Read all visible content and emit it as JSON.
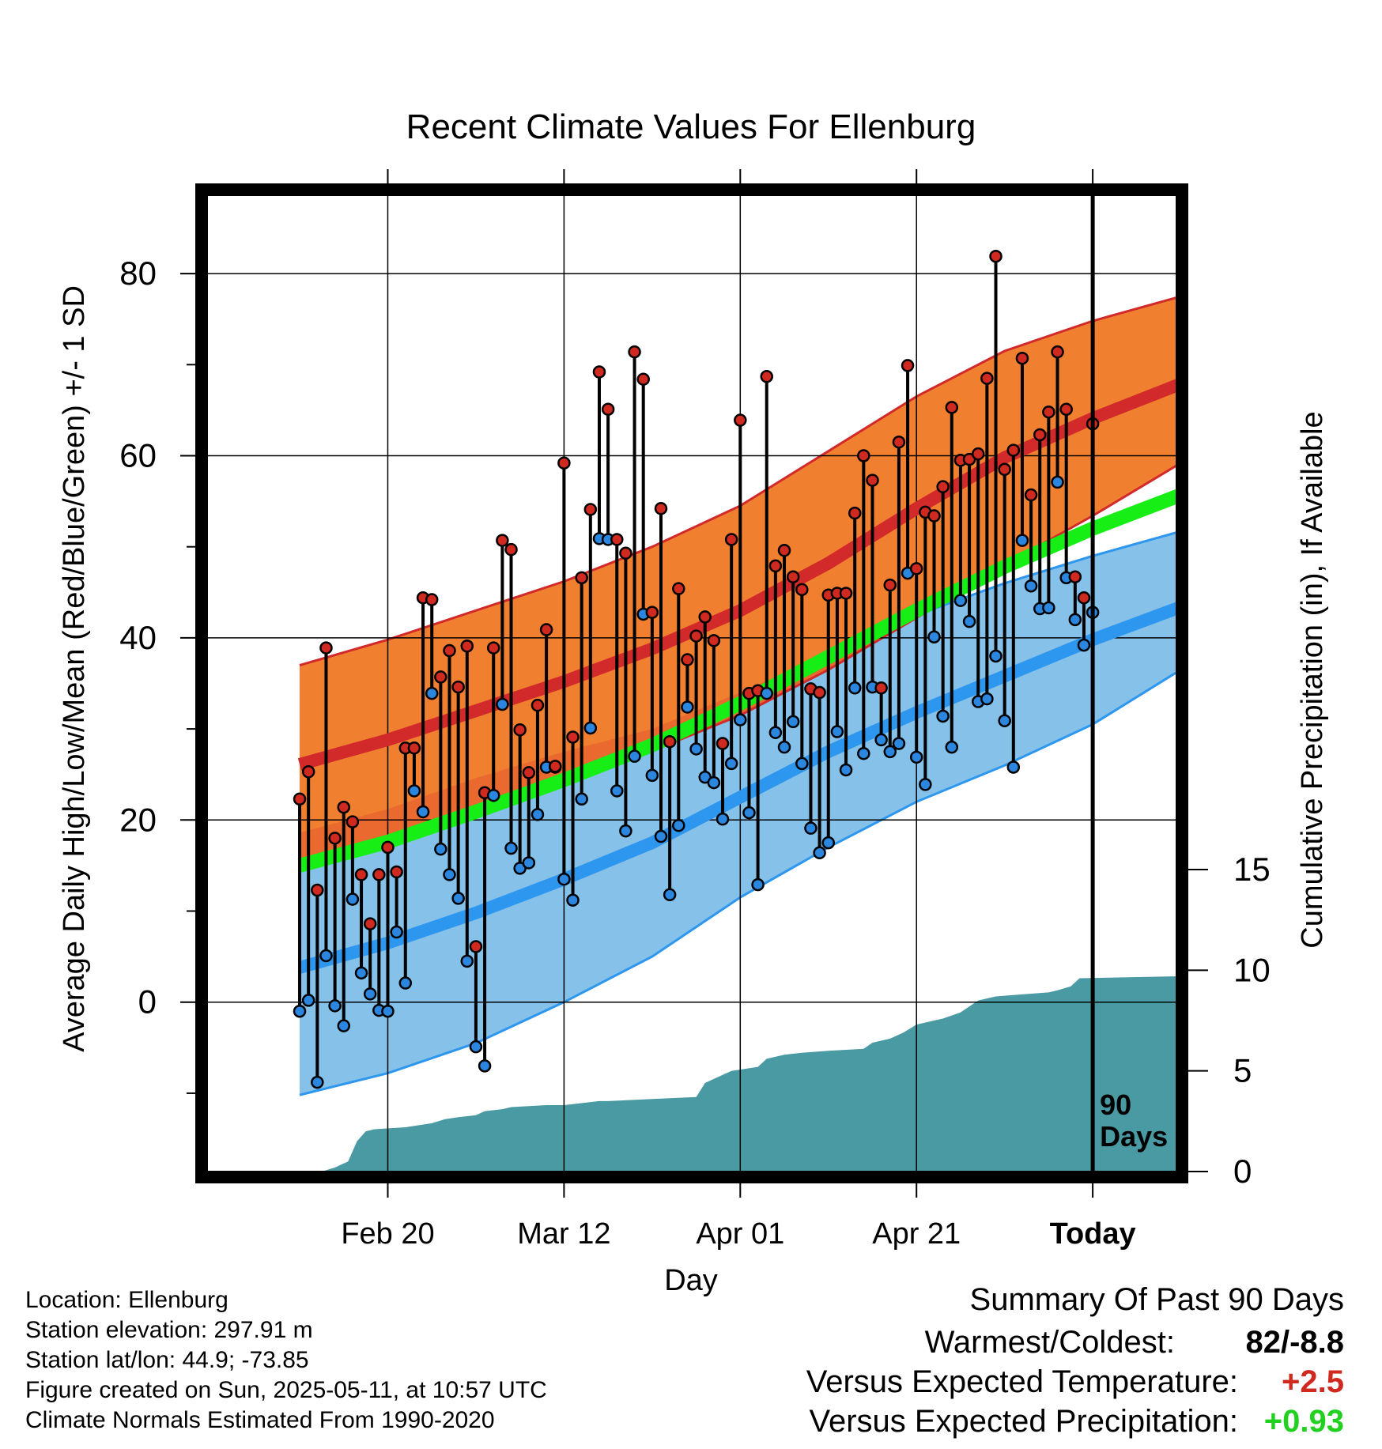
{
  "chart_data": {
    "type": "line",
    "title": "Recent Climate Values For Ellenburg",
    "xlabel": "Day",
    "ylabel": "Average Daily High/Low/Mean (Red/Blue/Green) +/- 1 SD",
    "y2label": "Cumulative Precipitation (in), If Available",
    "x_tick_labels": [
      "Feb 20",
      "Mar 12",
      "Apr 01",
      "Apr 21",
      "Today"
    ],
    "x_tick_days": [
      10,
      30,
      50,
      70,
      90
    ],
    "xlim": [
      -10.5,
      99.5
    ],
    "y_ticks": [
      0,
      20,
      40,
      60,
      80
    ],
    "ylim": [
      -18.6,
      88.6
    ],
    "y2_ticks": [
      0,
      5,
      10,
      15
    ],
    "y2lim": [
      0,
      48.5
    ],
    "grid": true,
    "marker_label": "90 Days",
    "normals": {
      "days": [
        0,
        10,
        20,
        30,
        40,
        50,
        60,
        70,
        80,
        90,
        100
      ],
      "high_mean": [
        26.1,
        28.8,
        32.0,
        35.2,
        38.8,
        43.0,
        48.2,
        54.2,
        59.8,
        64.1,
        67.9
      ],
      "high_upper": [
        37.0,
        39.8,
        43.0,
        46.2,
        50.0,
        54.5,
        60.5,
        66.5,
        71.5,
        74.8,
        77.5
      ],
      "high_lower": [
        15.2,
        17.8,
        21.0,
        24.2,
        27.6,
        31.5,
        36.5,
        42.2,
        48.0,
        53.4,
        59.2
      ],
      "low_mean": [
        3.8,
        6.5,
        9.8,
        13.5,
        17.5,
        22.5,
        27.5,
        31.8,
        35.8,
        39.8,
        43.4
      ],
      "low_upper": [
        18.6,
        21.2,
        24.6,
        27.5,
        30.0,
        34.0,
        38.3,
        42.5,
        46.0,
        49.0,
        51.7
      ],
      "low_lower": [
        -10.2,
        -7.8,
        -4.5,
        0.0,
        5.0,
        11.5,
        17.0,
        22.0,
        26.0,
        30.5,
        36.5
      ],
      "mean": [
        15.0,
        17.6,
        20.9,
        24.4,
        28.2,
        32.8,
        37.9,
        43.0,
        47.8,
        52.0,
        55.7
      ]
    },
    "series": [
      {
        "name": "High",
        "values": [
          22.3,
          25.3,
          12.3,
          38.9,
          18.0,
          21.4,
          19.8,
          14.0,
          8.6,
          14.0,
          17.0,
          14.3,
          27.9,
          27.9,
          44.4,
          44.2,
          35.7,
          38.6,
          34.6,
          39.1,
          6.1,
          23.0,
          38.9,
          50.7,
          49.7,
          29.9,
          25.2,
          32.6,
          40.9,
          25.9,
          59.2,
          29.1,
          46.6,
          54.1,
          69.2,
          65.1,
          50.8,
          49.3,
          71.4,
          68.4,
          42.8,
          54.2,
          28.6,
          45.4,
          37.6,
          40.2,
          42.3,
          39.7,
          28.4,
          50.8,
          63.9,
          33.9,
          34.2,
          68.7,
          47.9,
          49.6,
          46.7,
          45.3,
          34.4,
          34.0,
          44.7,
          44.9,
          44.9,
          53.7,
          60.0,
          57.3,
          34.5,
          45.8,
          61.5,
          69.9,
          47.6,
          53.8,
          53.4,
          56.6,
          65.3,
          59.5,
          59.6,
          60.2,
          68.5,
          81.9,
          58.5,
          60.6,
          70.7,
          55.7,
          62.3,
          64.8,
          71.4,
          65.1,
          46.7,
          44.4,
          63.5
        ]
      },
      {
        "name": "Low",
        "values": [
          -1.0,
          0.2,
          -8.8,
          5.1,
          -0.4,
          -2.6,
          11.3,
          3.2,
          0.9,
          -0.9,
          -1.0,
          7.7,
          2.1,
          23.2,
          20.9,
          33.9,
          16.8,
          14.0,
          11.4,
          4.5,
          -4.9,
          -7.0,
          22.7,
          32.7,
          16.9,
          14.7,
          15.3,
          20.6,
          25.8,
          25.8,
          13.5,
          11.2,
          22.3,
          30.1,
          50.9,
          50.8,
          23.2,
          18.8,
          27.0,
          42.6,
          24.9,
          18.2,
          11.8,
          19.4,
          32.4,
          27.8,
          24.7,
          24.1,
          20.1,
          26.2,
          31.0,
          20.8,
          12.9,
          33.9,
          29.6,
          28.0,
          30.8,
          26.2,
          19.1,
          16.4,
          17.5,
          29.7,
          25.5,
          34.5,
          27.3,
          34.6,
          28.8,
          27.5,
          28.4,
          47.1,
          26.9,
          23.9,
          40.1,
          31.4,
          28.0,
          44.1,
          41.8,
          33.0,
          33.3,
          38.0,
          30.9,
          25.8,
          50.7,
          45.7,
          43.2,
          43.3,
          57.1,
          46.6,
          42.0,
          39.2,
          42.8
        ]
      }
    ],
    "precipitation": {
      "days": [
        2.5,
        4,
        5.5,
        6.5,
        7.5,
        8.5,
        12,
        15,
        16.5,
        18,
        20,
        21,
        23,
        24,
        28,
        30,
        34,
        35,
        40,
        45,
        46,
        48,
        49,
        52,
        53,
        55,
        57,
        60,
        64,
        65,
        67,
        68.5,
        70,
        72,
        73,
        75,
        77,
        79,
        82,
        85,
        86,
        87.5,
        88.5,
        99.5
      ],
      "values": [
        0.0,
        0.2,
        0.5,
        1.5,
        2.0,
        2.1,
        2.2,
        2.4,
        2.6,
        2.7,
        2.8,
        3.0,
        3.1,
        3.2,
        3.3,
        3.3,
        3.5,
        3.5,
        3.6,
        3.7,
        4.4,
        4.8,
        5.0,
        5.2,
        5.6,
        5.8,
        5.9,
        6.0,
        6.1,
        6.4,
        6.6,
        6.9,
        7.3,
        7.5,
        7.6,
        7.9,
        8.5,
        8.7,
        8.8,
        8.9,
        9.0,
        9.2,
        9.6,
        9.7
      ]
    }
  },
  "info": {
    "location": "Location: Ellenburg",
    "elevation": "Station elevation: 297.91 m",
    "latlon": "Station lat/lon: 44.9; -73.85",
    "created": "Figure created on Sun, 2025-05-11, at 10:57 UTC",
    "normals_period": "Climate Normals Estimated From 1990-2020"
  },
  "summary": {
    "title": "Summary Of Past 90 Days",
    "warmest_coldest_label": "Warmest/Coldest:",
    "warmest_coldest_value": "82/-8.8",
    "temp_label": "Versus Expected Temperature:",
    "temp_value": "+2.5",
    "precip_label": "Versus Expected Precipitation:",
    "precip_value": "+0.93",
    "colors": {
      "temp": "#d02a20",
      "precip": "#22d020"
    }
  },
  "colors": {
    "high_band": "#f07f30",
    "high_line": "#d2292a",
    "low_band": "#85c1e9",
    "low_line": "#2d96ee",
    "mean_line": "#16ee16",
    "precip_fill": "#4a9aa4",
    "high_marker": "#d02a20",
    "low_marker": "#2a86de"
  }
}
